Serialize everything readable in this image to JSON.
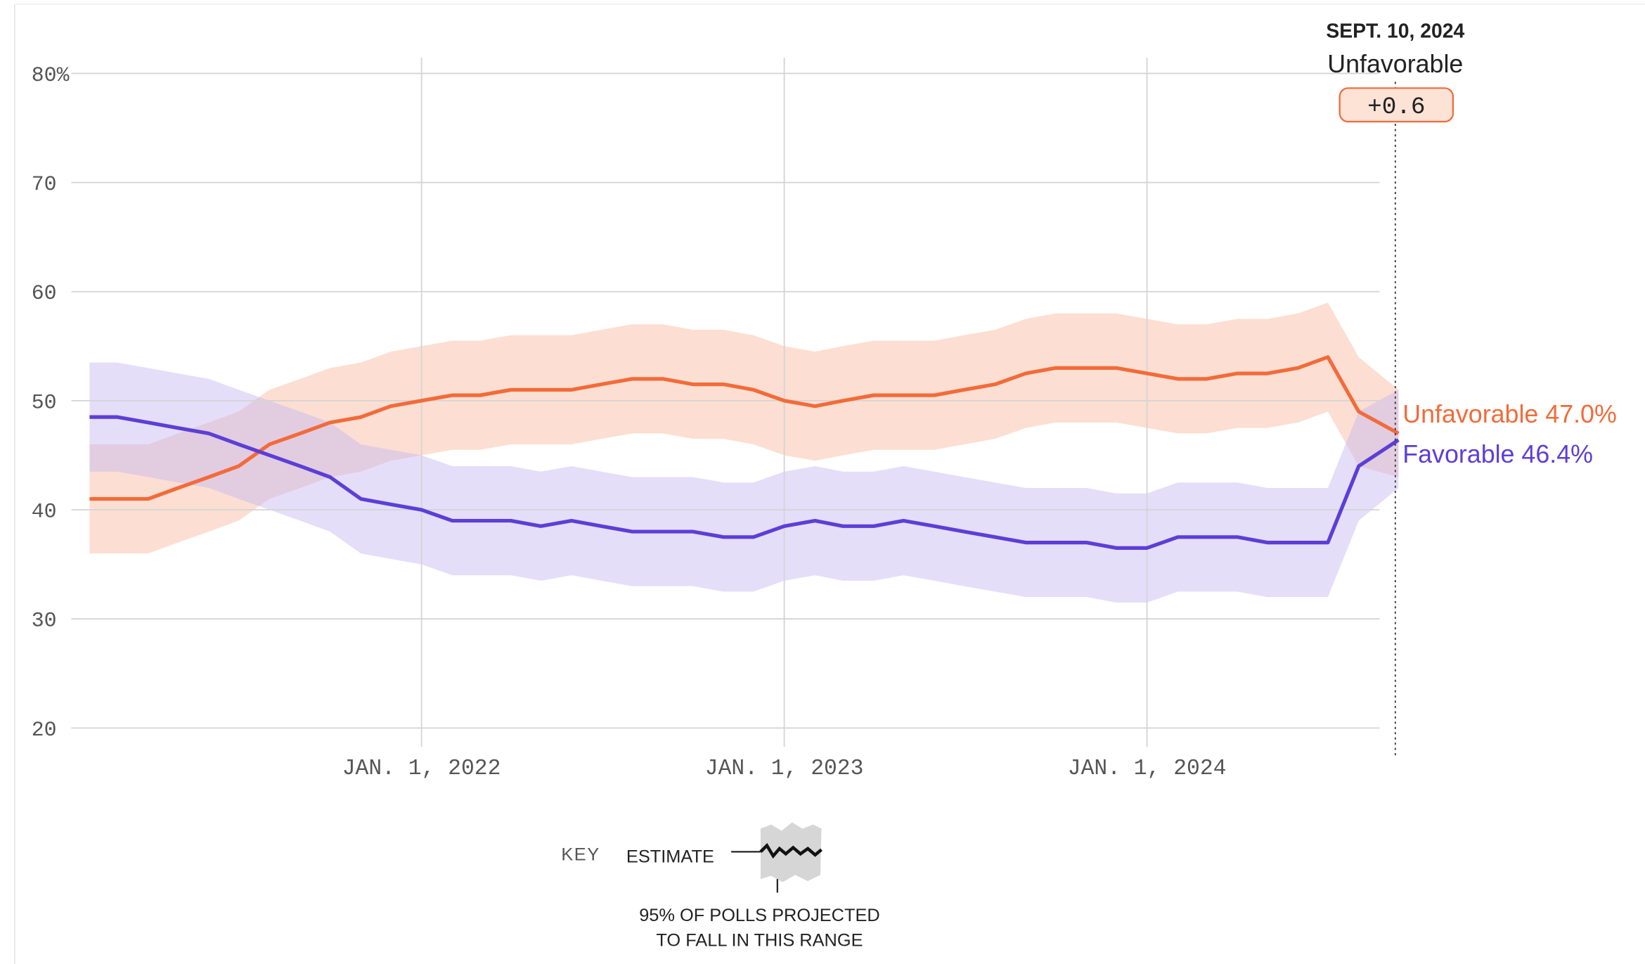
{
  "chart_data": {
    "type": "line",
    "x": [
      "2021-02-01",
      "2021-03-01",
      "2021-04-01",
      "2021-05-01",
      "2021-06-01",
      "2021-07-01",
      "2021-08-01",
      "2021-09-01",
      "2021-10-01",
      "2021-11-01",
      "2021-12-01",
      "2022-01-01",
      "2022-02-01",
      "2022-03-01",
      "2022-04-01",
      "2022-05-01",
      "2022-06-01",
      "2022-07-01",
      "2022-08-01",
      "2022-09-01",
      "2022-10-01",
      "2022-11-01",
      "2022-12-01",
      "2023-01-01",
      "2023-02-01",
      "2023-03-01",
      "2023-04-01",
      "2023-05-01",
      "2023-06-01",
      "2023-07-01",
      "2023-08-01",
      "2023-09-01",
      "2023-10-01",
      "2023-11-01",
      "2023-12-01",
      "2024-01-01",
      "2024-02-01",
      "2024-03-01",
      "2024-04-01",
      "2024-05-01",
      "2024-06-01",
      "2024-07-01",
      "2024-08-01",
      "2024-09-10"
    ],
    "series": [
      {
        "name": "Unfavorable",
        "color": "#f26b3a",
        "band_color": "#f9b89c",
        "values": [
          41,
          41,
          41,
          42,
          43,
          44,
          46,
          47,
          48,
          48.5,
          49.5,
          50,
          50.5,
          50.5,
          51,
          51,
          51,
          51.5,
          52,
          52,
          51.5,
          51.5,
          51,
          50,
          49.5,
          50,
          50.5,
          50.5,
          50.5,
          51,
          51.5,
          52.5,
          53,
          53,
          53,
          52.5,
          52,
          52,
          52.5,
          52.5,
          53,
          54,
          49,
          47
        ],
        "upper": [
          46,
          46,
          46,
          47,
          48,
          49,
          51,
          52,
          53,
          53.5,
          54.5,
          55,
          55.5,
          55.5,
          56,
          56,
          56,
          56.5,
          57,
          57,
          56.5,
          56.5,
          56,
          55,
          54.5,
          55,
          55.5,
          55.5,
          55.5,
          56,
          56.5,
          57.5,
          58,
          58,
          58,
          57.5,
          57,
          57,
          57.5,
          57.5,
          58,
          59,
          54,
          51
        ],
        "lower": [
          36,
          36,
          36,
          37,
          38,
          39,
          41,
          42,
          43,
          43.5,
          44.5,
          45,
          45.5,
          45.5,
          46,
          46,
          46,
          46.5,
          47,
          47,
          46.5,
          46.5,
          46,
          45,
          44.5,
          45,
          45.5,
          45.5,
          45.5,
          46,
          46.5,
          47.5,
          48,
          48,
          48,
          47.5,
          47,
          47,
          47.5,
          47.5,
          48,
          49,
          44,
          43
        ],
        "value_labels": [
          null,
          null,
          null,
          null,
          null,
          null,
          null,
          null,
          null,
          null,
          null,
          null,
          null,
          null,
          null,
          null,
          null,
          null,
          null,
          null,
          null,
          null,
          null,
          null,
          null,
          null,
          null,
          null,
          null,
          null,
          null,
          null,
          null,
          null,
          null,
          null,
          null,
          null,
          null,
          null,
          null,
          null,
          null,
          "47.0%"
        ]
      },
      {
        "name": "Favorable",
        "color": "#5b3fd6",
        "band_color": "#c4b6f2",
        "values": [
          48.5,
          48.5,
          48,
          47.5,
          47,
          46,
          45,
          44,
          43,
          41,
          40.5,
          40,
          39,
          39,
          39,
          38.5,
          39,
          38.5,
          38,
          38,
          38,
          37.5,
          37.5,
          38.5,
          39,
          38.5,
          38.5,
          39,
          38.5,
          38,
          37.5,
          37,
          37,
          37,
          36.5,
          36.5,
          37.5,
          37.5,
          37.5,
          37,
          37,
          37,
          44,
          46.4
        ],
        "upper": [
          53.5,
          53.5,
          53,
          52.5,
          52,
          51,
          50,
          49,
          48,
          46,
          45.5,
          45,
          44,
          44,
          44,
          43.5,
          44,
          43.5,
          43,
          43,
          43,
          42.5,
          42.5,
          43.5,
          44,
          43.5,
          43.5,
          44,
          43.5,
          43,
          42.5,
          42,
          42,
          42,
          41.5,
          41.5,
          42.5,
          42.5,
          42.5,
          42,
          42,
          42,
          49,
          51
        ],
        "lower": [
          43.5,
          43.5,
          43,
          42.5,
          42,
          41,
          40,
          39,
          38,
          36,
          35.5,
          35,
          34,
          34,
          34,
          33.5,
          34,
          33.5,
          33,
          33,
          33,
          32.5,
          32.5,
          33.5,
          34,
          33.5,
          33.5,
          34,
          33.5,
          33,
          32.5,
          32,
          32,
          32,
          31.5,
          31.5,
          32.5,
          32.5,
          32.5,
          32,
          32,
          32,
          39,
          42
        ],
        "value_labels": [
          null,
          null,
          null,
          null,
          null,
          null,
          null,
          null,
          null,
          null,
          null,
          null,
          null,
          null,
          null,
          null,
          null,
          null,
          null,
          null,
          null,
          null,
          null,
          null,
          null,
          null,
          null,
          null,
          null,
          null,
          null,
          null,
          null,
          null,
          null,
          null,
          null,
          null,
          null,
          null,
          null,
          null,
          null,
          "46.4%"
        ]
      }
    ],
    "xlim": [
      "2021-01-20",
      "2024-09-10"
    ],
    "xticks": [
      {
        "value": "2022-01-01",
        "label": "JAN. 1, 2022"
      },
      {
        "value": "2023-01-01",
        "label": "JAN. 1, 2023"
      },
      {
        "value": "2024-01-01",
        "label": "JAN. 1, 2024"
      }
    ],
    "ylim": [
      20,
      80
    ],
    "yticks": [
      20,
      30,
      40,
      50,
      60,
      70,
      {
        "value": 80,
        "label": "80%"
      }
    ],
    "grid": true,
    "annotation": {
      "date": "SEPT. 10, 2024",
      "leader": "Unfavorable",
      "margin": {
        "value": 0.6,
        "label": "+0.6"
      }
    },
    "key": {
      "title": "KEY",
      "estimate": "ESTIMATE",
      "range_line1": "95% OF POLLS PROJECTED",
      "range_line2": "TO FALL IN THIS RANGE"
    }
  }
}
